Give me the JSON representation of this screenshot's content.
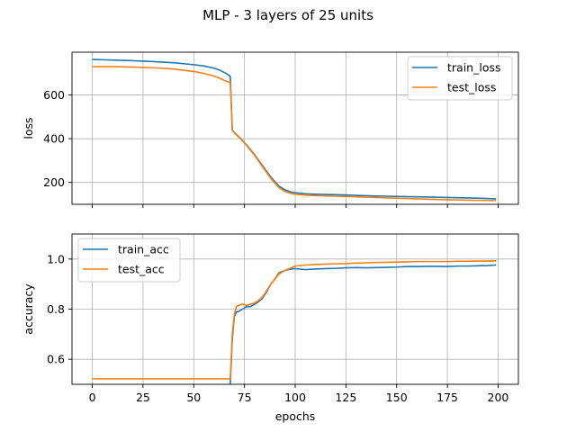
{
  "figure": {
    "title": "MLP - 3 layers of 25 units"
  },
  "chart_data": [
    {
      "type": "line",
      "title": "",
      "xlabel": "",
      "ylabel": "loss",
      "xlim": [
        -10,
        210
      ],
      "ylim": [
        100,
        795
      ],
      "xticks": [
        0,
        25,
        50,
        75,
        100,
        125,
        150,
        175,
        200
      ],
      "yticks": [
        200,
        400,
        600
      ],
      "xticks_labeled": false,
      "grid": true,
      "legend": "upper right",
      "series": [
        {
          "name": "train_loss",
          "color": "#1f77b4",
          "x": [
            0,
            10,
            20,
            30,
            40,
            50,
            55,
            60,
            63,
            66,
            68,
            69,
            70,
            73,
            76,
            80,
            84,
            88,
            92,
            95,
            98,
            100,
            105,
            110,
            120,
            130,
            140,
            150,
            160,
            170,
            180,
            190,
            199
          ],
          "y": [
            762,
            759,
            756,
            752,
            747,
            738,
            732,
            722,
            712,
            698,
            685,
            440,
            428,
            402,
            372,
            326,
            275,
            224,
            183,
            166,
            156,
            153,
            148,
            146,
            144,
            141,
            138,
            136,
            134,
            132,
            130,
            128,
            125
          ]
        },
        {
          "name": "test_loss",
          "color": "#ff7f0e",
          "x": [
            0,
            10,
            20,
            30,
            40,
            50,
            55,
            60,
            63,
            66,
            68,
            69,
            70,
            73,
            76,
            80,
            84,
            88,
            92,
            95,
            98,
            100,
            105,
            110,
            120,
            130,
            140,
            150,
            160,
            170,
            180,
            190,
            199
          ],
          "y": [
            729,
            729,
            727,
            724,
            718,
            707,
            698,
            686,
            675,
            663,
            655,
            440,
            426,
            400,
            370,
            323,
            270,
            218,
            176,
            159,
            149,
            146,
            142,
            140,
            137,
            134,
            131,
            128,
            125,
            122,
            120,
            118,
            117
          ]
        }
      ]
    },
    {
      "type": "line",
      "title": "",
      "xlabel": "epochs",
      "ylabel": "accuracy",
      "xlim": [
        -10,
        210
      ],
      "ylim": [
        0.5,
        1.1
      ],
      "xticks": [
        0,
        25,
        50,
        75,
        100,
        125,
        150,
        175,
        200
      ],
      "yticks": [
        0.6,
        0.8,
        1.0
      ],
      "ytick_labels": [
        "0.6",
        "0.8",
        "1.0"
      ],
      "xticks_labeled": true,
      "grid": true,
      "legend": "upper left",
      "series": [
        {
          "name": "train_acc",
          "color": "#1f77b4",
          "x": [
            68,
            69,
            70,
            71,
            72,
            74,
            76,
            78,
            80,
            82,
            84,
            86,
            88,
            90,
            92,
            95,
            98,
            100,
            105,
            110,
            115,
            120,
            125,
            130,
            135,
            140,
            145,
            150,
            155,
            160,
            165,
            170,
            175,
            180,
            185,
            190,
            195,
            199
          ],
          "y": [
            0.5,
            0.68,
            0.77,
            0.79,
            0.79,
            0.8,
            0.81,
            0.81,
            0.82,
            0.83,
            0.845,
            0.87,
            0.9,
            0.92,
            0.945,
            0.955,
            0.96,
            0.962,
            0.958,
            0.96,
            0.962,
            0.963,
            0.965,
            0.966,
            0.965,
            0.966,
            0.967,
            0.968,
            0.97,
            0.97,
            0.971,
            0.971,
            0.97,
            0.972,
            0.972,
            0.973,
            0.974,
            0.976
          ]
        },
        {
          "name": "test_acc",
          "color": "#ff7f0e",
          "x": [
            0,
            20,
            40,
            60,
            68,
            69,
            70,
            71,
            72,
            74,
            76,
            78,
            80,
            82,
            84,
            86,
            88,
            90,
            92,
            95,
            98,
            100,
            105,
            110,
            115,
            120,
            125,
            130,
            135,
            140,
            145,
            150,
            155,
            160,
            165,
            170,
            175,
            180,
            185,
            190,
            195,
            199
          ],
          "y": [
            0.522,
            0.522,
            0.522,
            0.522,
            0.522,
            0.7,
            0.78,
            0.81,
            0.815,
            0.82,
            0.815,
            0.82,
            0.825,
            0.835,
            0.85,
            0.875,
            0.9,
            0.92,
            0.94,
            0.955,
            0.965,
            0.972,
            0.976,
            0.978,
            0.98,
            0.981,
            0.982,
            0.984,
            0.985,
            0.986,
            0.987,
            0.988,
            0.989,
            0.99,
            0.99,
            0.99,
            0.99,
            0.991,
            0.991,
            0.992,
            0.992,
            0.993
          ]
        }
      ]
    }
  ]
}
